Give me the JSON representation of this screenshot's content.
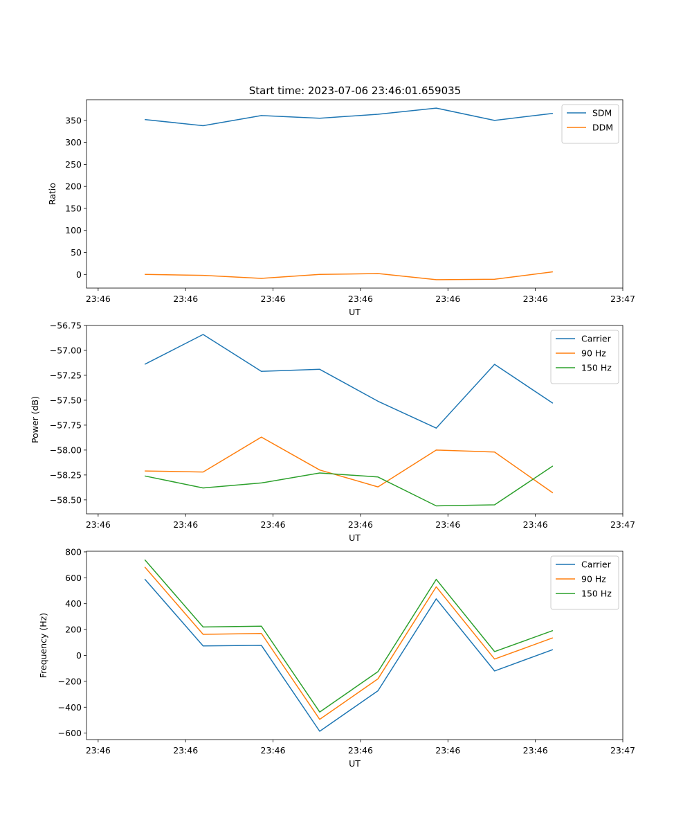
{
  "suptitle": "Start time: 2023-07-06 23:46:01.659035",
  "colors": {
    "blue": "#1f77b4",
    "orange": "#ff7f0e",
    "green": "#2ca02c"
  },
  "chart_data": [
    {
      "type": "line",
      "xlabel": "UT",
      "ylabel": "Ratio",
      "x_tick_labels": [
        "23:46",
        "23:46",
        "23:46",
        "23:46",
        "23:46",
        "23:46",
        "23:47"
      ],
      "x": [
        1,
        2,
        3,
        4,
        5,
        6,
        7,
        8
      ],
      "xlim": [
        0,
        9.2
      ],
      "x_ticks": [
        0.2,
        1.7,
        3.2,
        4.7,
        6.2,
        7.7,
        9.2
      ],
      "ylim": [
        -31,
        397
      ],
      "y_ticks": [
        0,
        50,
        100,
        150,
        200,
        250,
        300,
        350
      ],
      "y_tick_labels": [
        "0",
        "50",
        "100",
        "150",
        "200",
        "250",
        "300",
        "350"
      ],
      "legend_position": "top-right",
      "series": [
        {
          "name": "SDM",
          "color": "blue",
          "values": [
            352,
            338,
            361,
            355,
            364,
            378,
            350,
            366
          ]
        },
        {
          "name": "DDM",
          "color": "orange",
          "values": [
            0,
            -2,
            -9,
            0,
            2,
            -12,
            -11,
            6
          ]
        }
      ]
    },
    {
      "type": "line",
      "xlabel": "UT",
      "ylabel": "Power (dB)",
      "x_tick_labels": [
        "23:46",
        "23:46",
        "23:46",
        "23:46",
        "23:46",
        "23:46",
        "23:47"
      ],
      "x": [
        1,
        2,
        3,
        4,
        5,
        6,
        7,
        8
      ],
      "xlim": [
        0,
        9.2
      ],
      "x_ticks": [
        0.2,
        1.7,
        3.2,
        4.7,
        6.2,
        7.7,
        9.2
      ],
      "ylim": [
        -58.64,
        -56.75
      ],
      "y_ticks": [
        -58.5,
        -58.25,
        -58.0,
        -57.75,
        -57.5,
        -57.25,
        -57.0,
        -56.75
      ],
      "y_tick_labels": [
        "−58.50",
        "−58.25",
        "−58.00",
        "−57.75",
        "−57.50",
        "−57.25",
        "−57.00",
        "−56.75"
      ],
      "legend_position": "top-right",
      "series": [
        {
          "name": "Carrier",
          "color": "blue",
          "values": [
            -57.14,
            -56.84,
            -57.21,
            -57.19,
            -57.51,
            -57.78,
            -57.14,
            -57.53
          ]
        },
        {
          "name": "90 Hz",
          "color": "orange",
          "values": [
            -58.21,
            -58.22,
            -57.87,
            -58.2,
            -58.37,
            -58.0,
            -58.02,
            -58.43
          ]
        },
        {
          "name": "150 Hz",
          "color": "green",
          "values": [
            -58.26,
            -58.38,
            -58.33,
            -58.23,
            -58.27,
            -58.56,
            -58.55,
            -58.16
          ]
        }
      ]
    },
    {
      "type": "line",
      "xlabel": "UT",
      "ylabel": "Frequency (Hz)",
      "x_tick_labels": [
        "23:46",
        "23:46",
        "23:46",
        "23:46",
        "23:46",
        "23:46",
        "23:47"
      ],
      "x": [
        1,
        2,
        3,
        4,
        5,
        6,
        7,
        8
      ],
      "xlim": [
        0,
        9.2
      ],
      "x_ticks": [
        0.2,
        1.7,
        3.2,
        4.7,
        6.2,
        7.7,
        9.2
      ],
      "ylim": [
        -650,
        805
      ],
      "y_ticks": [
        -600,
        -400,
        -200,
        0,
        200,
        400,
        600,
        800
      ],
      "y_tick_labels": [
        "−600",
        "−400",
        "−200",
        "0",
        "200",
        "400",
        "600",
        "800"
      ],
      "legend_position": "top-right",
      "series": [
        {
          "name": "Carrier",
          "color": "blue",
          "values": [
            590,
            73,
            78,
            -586,
            -273,
            437,
            -120,
            45
          ]
        },
        {
          "name": "90 Hz",
          "color": "orange",
          "values": [
            683,
            163,
            170,
            -494,
            -181,
            530,
            -28,
            136
          ]
        },
        {
          "name": "150 Hz",
          "color": "green",
          "values": [
            739,
            220,
            226,
            -437,
            -125,
            588,
            30,
            192
          ]
        }
      ]
    }
  ]
}
